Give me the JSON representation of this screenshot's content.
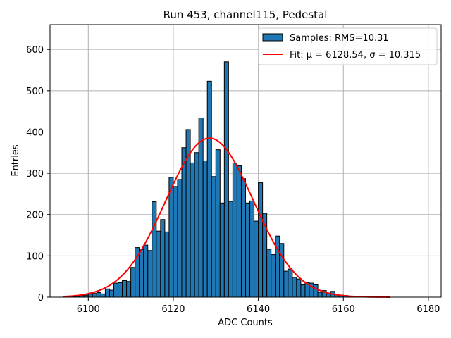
{
  "chart_data": {
    "type": "bar",
    "title": "Run 453, channel115, Pedestal",
    "xlabel": "ADC Counts",
    "ylabel": "Entries",
    "xlim": [
      6091,
      6183
    ],
    "ylim": [
      0,
      660
    ],
    "x_ticks": [
      6100,
      6120,
      6140,
      6160,
      6180
    ],
    "y_ticks": [
      0,
      100,
      200,
      300,
      400,
      500,
      600
    ],
    "grid": true,
    "legend_position": "top-right",
    "bin_width": 1,
    "colors": {
      "bars": "#1f77b4",
      "bar_edge": "#000000",
      "fit": "#ff0000",
      "grid": "#b0b0b0"
    },
    "series": [
      {
        "name": "Samples: RMS=10.31",
        "type": "bar",
        "bins": [
          6096,
          6097,
          6098,
          6099,
          6100,
          6101,
          6102,
          6103,
          6104,
          6105,
          6106,
          6107,
          6108,
          6109,
          6110,
          6111,
          6112,
          6113,
          6114,
          6115,
          6116,
          6117,
          6118,
          6119,
          6120,
          6121,
          6122,
          6123,
          6124,
          6125,
          6126,
          6127,
          6128,
          6129,
          6130,
          6131,
          6132,
          6133,
          6134,
          6135,
          6136,
          6137,
          6138,
          6139,
          6140,
          6141,
          6142,
          6143,
          6144,
          6145,
          6146,
          6147,
          6148,
          6149,
          6150,
          6151,
          6152,
          6153,
          6154,
          6155,
          6156,
          6157,
          6158,
          6159,
          6160,
          6161,
          6162
        ],
        "values": [
          1,
          2,
          4,
          5,
          8,
          9,
          11,
          8,
          20,
          17,
          34,
          35,
          40,
          38,
          72,
          120,
          116,
          126,
          113,
          231,
          160,
          188,
          158,
          290,
          268,
          285,
          362,
          406,
          325,
          350,
          434,
          330,
          523,
          292,
          357,
          228,
          570,
          232,
          325,
          318,
          287,
          228,
          233,
          184,
          277,
          203,
          116,
          103,
          148,
          130,
          63,
          68,
          48,
          44,
          30,
          35,
          34,
          30,
          12,
          16,
          10,
          14,
          6,
          5,
          4,
          2,
          2
        ]
      },
      {
        "name": "Fit: μ = 6128.54, σ = 10.315",
        "type": "line",
        "mu": 6128.54,
        "sigma": 10.315,
        "amplitude": 385,
        "x_range": [
          6094,
          6171
        ]
      }
    ]
  }
}
